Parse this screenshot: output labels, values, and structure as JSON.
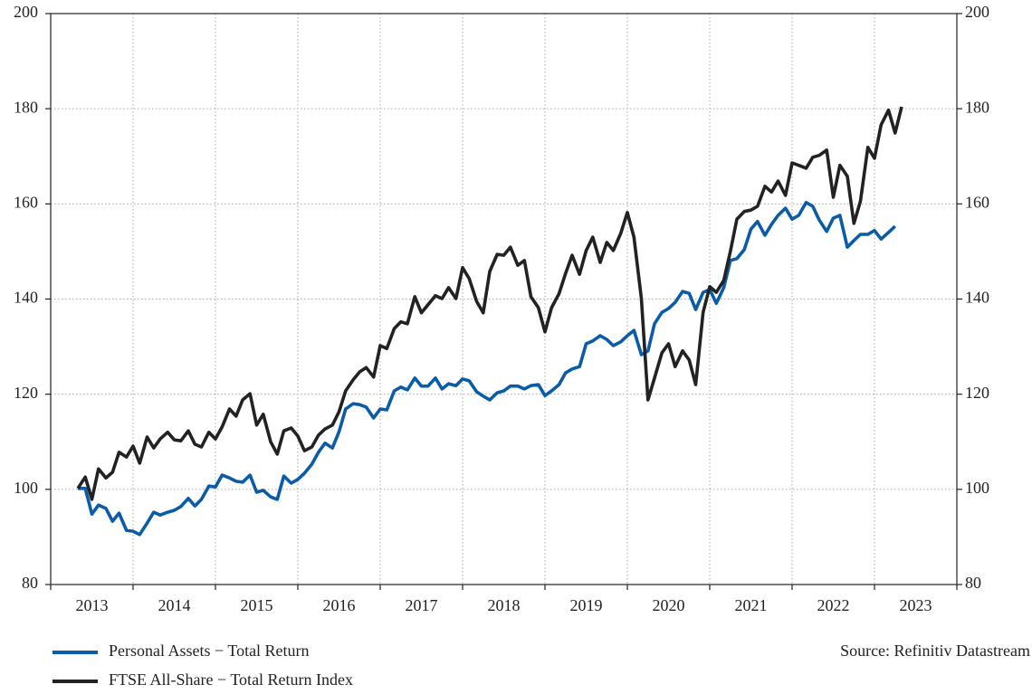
{
  "chart_data": {
    "type": "line",
    "source": "Source: Refinitiv Datastream",
    "xlim": [
      2013,
      2024
    ],
    "xticks": [
      {
        "value": 2013.5,
        "label": "2013"
      },
      {
        "value": 2014.5,
        "label": "2014"
      },
      {
        "value": 2015.5,
        "label": "2015"
      },
      {
        "value": 2016.5,
        "label": "2016"
      },
      {
        "value": 2017.5,
        "label": "2017"
      },
      {
        "value": 2018.5,
        "label": "2018"
      },
      {
        "value": 2019.5,
        "label": "2019"
      },
      {
        "value": 2020.5,
        "label": "2020"
      },
      {
        "value": 2021.5,
        "label": "2021"
      },
      {
        "value": 2022.5,
        "label": "2022"
      },
      {
        "value": 2023.5,
        "label": "2023"
      }
    ],
    "ylim": [
      80,
      200
    ],
    "yticks": [
      80,
      100,
      120,
      140,
      160,
      180,
      200
    ],
    "y2lim": [
      80,
      200
    ],
    "y2ticks": [
      80,
      100,
      120,
      140,
      160,
      180,
      200
    ],
    "grid": true,
    "legend": "bottom-left",
    "x": [
      2013.33,
      2013.42,
      2013.5,
      2013.58,
      2013.67,
      2013.75,
      2013.83,
      2013.92,
      2014,
      2014.08,
      2014.17,
      2014.25,
      2014.33,
      2014.42,
      2014.5,
      2014.58,
      2014.67,
      2014.75,
      2014.83,
      2014.92,
      2015,
      2015.08,
      2015.17,
      2015.25,
      2015.33,
      2015.42,
      2015.5,
      2015.58,
      2015.67,
      2015.75,
      2015.83,
      2015.92,
      2016,
      2016.08,
      2016.17,
      2016.25,
      2016.33,
      2016.42,
      2016.5,
      2016.58,
      2016.67,
      2016.75,
      2016.83,
      2016.92,
      2017,
      2017.08,
      2017.17,
      2017.25,
      2017.33,
      2017.42,
      2017.5,
      2017.58,
      2017.67,
      2017.75,
      2017.83,
      2017.92,
      2018,
      2018.08,
      2018.17,
      2018.25,
      2018.33,
      2018.42,
      2018.5,
      2018.58,
      2018.67,
      2018.75,
      2018.83,
      2018.92,
      2019,
      2019.08,
      2019.17,
      2019.25,
      2019.33,
      2019.42,
      2019.5,
      2019.58,
      2019.67,
      2019.75,
      2019.83,
      2019.92,
      2020,
      2020.08,
      2020.17,
      2020.25,
      2020.33,
      2020.42,
      2020.5,
      2020.58,
      2020.67,
      2020.75,
      2020.83,
      2020.92,
      2021,
      2021.08,
      2021.17,
      2021.25,
      2021.33,
      2021.42,
      2021.5,
      2021.58,
      2021.67,
      2021.75,
      2021.83,
      2021.92,
      2022,
      2022.08,
      2022.17,
      2022.25,
      2022.33,
      2022.42,
      2022.5,
      2022.58,
      2022.67,
      2022.75,
      2022.83,
      2022.92,
      2023,
      2023.08,
      2023.17,
      2023.25,
      2023.33
    ],
    "series": [
      {
        "name": "Personal Assets − Total Return",
        "color": "#0b5ca6",
        "values": [
          100.2,
          100.2,
          94.8,
          96.7,
          96.0,
          93.3,
          95.0,
          91.4,
          91.2,
          90.5,
          92.9,
          95.2,
          94.6,
          95.2,
          95.6,
          96.4,
          98.1,
          96.5,
          97.9,
          100.7,
          100.5,
          103.0,
          102.4,
          101.7,
          101.5,
          103.0,
          99.4,
          99.8,
          98.4,
          97.9,
          102.8,
          101.3,
          102.1,
          103.4,
          105.3,
          107.8,
          109.7,
          108.7,
          112.1,
          116.9,
          118.0,
          117.8,
          117.3,
          115.0,
          116.9,
          116.7,
          120.7,
          121.5,
          120.9,
          123.4,
          121.7,
          121.7,
          123.4,
          121.1,
          122.2,
          121.8,
          123.2,
          122.8,
          120.5,
          119.6,
          118.8,
          120.3,
          120.7,
          121.7,
          121.7,
          121.1,
          121.8,
          122.0,
          119.7,
          120.7,
          122.0,
          124.5,
          125.3,
          125.8,
          130.6,
          131.2,
          132.3,
          131.5,
          130.2,
          131.0,
          132.3,
          133.4,
          128.3,
          129.1,
          134.8,
          137.2,
          138.0,
          139.3,
          141.6,
          141.2,
          137.8,
          141.4,
          142.0,
          139.1,
          142.4,
          148.1,
          148.5,
          150.4,
          154.7,
          156.3,
          153.4,
          155.7,
          157.6,
          159.1,
          156.8,
          157.6,
          160.3,
          159.5,
          156.6,
          154.2,
          157.0,
          157.6,
          150.9,
          152.3,
          153.6,
          153.6,
          154.4,
          152.6,
          154.0,
          155.3,
          null
        ]
      },
      {
        "name": "FTSE All-Share − Total Return Index",
        "color": "#222222",
        "values": [
          100.2,
          102.6,
          97.9,
          104.3,
          102.4,
          103.6,
          107.8,
          106.8,
          109.1,
          105.5,
          111.0,
          108.7,
          110.6,
          112.0,
          110.4,
          110.2,
          112.3,
          109.5,
          108.9,
          112.0,
          110.6,
          113.1,
          116.9,
          115.4,
          118.8,
          120.1,
          113.5,
          115.8,
          110.0,
          107.4,
          112.3,
          112.9,
          111.2,
          108.1,
          108.9,
          111.4,
          112.7,
          113.5,
          116.3,
          120.7,
          123.0,
          124.7,
          125.6,
          123.6,
          130.2,
          129.6,
          133.8,
          135.2,
          134.8,
          140.5,
          137.1,
          138.8,
          140.7,
          140.1,
          142.4,
          140.1,
          146.6,
          144.3,
          139.5,
          137.1,
          145.8,
          149.4,
          149.2,
          150.9,
          147.1,
          148.1,
          140.5,
          138.2,
          133.1,
          138.2,
          141.1,
          145.4,
          149.2,
          145.2,
          150.2,
          153.0,
          147.7,
          151.9,
          150.2,
          153.8,
          158.2,
          153.0,
          140.1,
          118.8,
          123.4,
          128.7,
          130.6,
          125.8,
          129.1,
          127.2,
          122.0,
          137.2,
          142.6,
          141.4,
          143.9,
          150.0,
          156.8,
          158.4,
          158.7,
          159.5,
          163.7,
          162.5,
          164.8,
          161.8,
          168.6,
          168.1,
          167.5,
          169.8,
          170.2,
          171.3,
          161.4,
          168.1,
          165.8,
          155.9,
          160.6,
          171.9,
          169.6,
          176.6,
          179.7,
          174.9,
          180.4
        ]
      }
    ]
  }
}
